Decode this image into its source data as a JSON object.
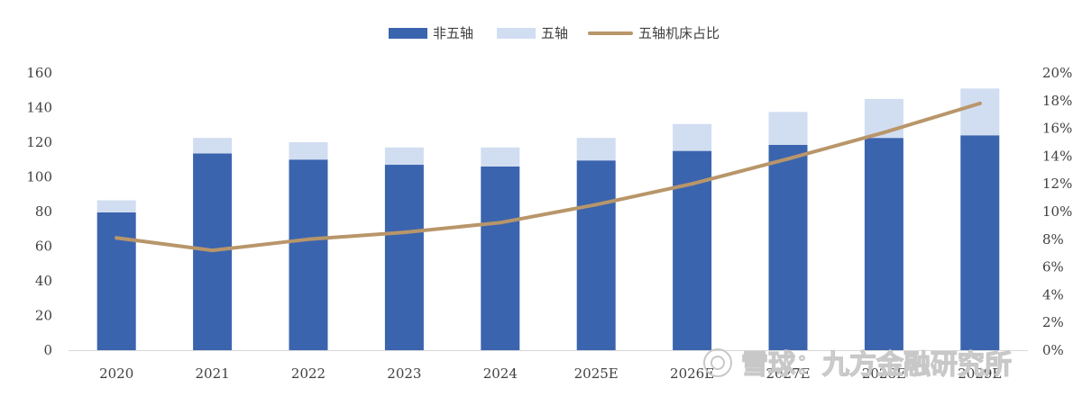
{
  "chart_data": {
    "type": "bar",
    "stacked": true,
    "categories": [
      "2020",
      "2021",
      "2022",
      "2023",
      "2024",
      "2025E",
      "2026E",
      "2027E",
      "2028E",
      "2029E"
    ],
    "series": [
      {
        "name": "非五轴",
        "type": "bar",
        "axis": "left",
        "color": "#3b64ae",
        "values": [
          79.5,
          113.5,
          110,
          107,
          106,
          109.5,
          115,
          118.5,
          122.5,
          124
        ]
      },
      {
        "name": "五轴",
        "type": "bar",
        "axis": "left",
        "color": "#d1ddf1",
        "values": [
          7,
          9,
          10,
          10,
          11,
          13,
          15.5,
          19,
          22.5,
          27
        ]
      },
      {
        "name": "五轴机床占比",
        "type": "line",
        "axis": "right",
        "color": "#b8966a",
        "values": [
          0.081,
          0.072,
          0.08,
          0.085,
          0.092,
          0.105,
          0.12,
          0.138,
          0.157,
          0.178
        ]
      }
    ],
    "ylim": [
      0,
      160
    ],
    "yticks": [
      "0",
      "20",
      "40",
      "60",
      "80",
      "100",
      "120",
      "140",
      "160"
    ],
    "y2lim": [
      0,
      0.2
    ],
    "y2ticks": [
      "0%",
      "2%",
      "4%",
      "6%",
      "8%",
      "10%",
      "12%",
      "14%",
      "16%",
      "18%",
      "20%"
    ],
    "legend_position": "top-center",
    "grid": false
  },
  "watermark": "雪球：九方金融研究所"
}
